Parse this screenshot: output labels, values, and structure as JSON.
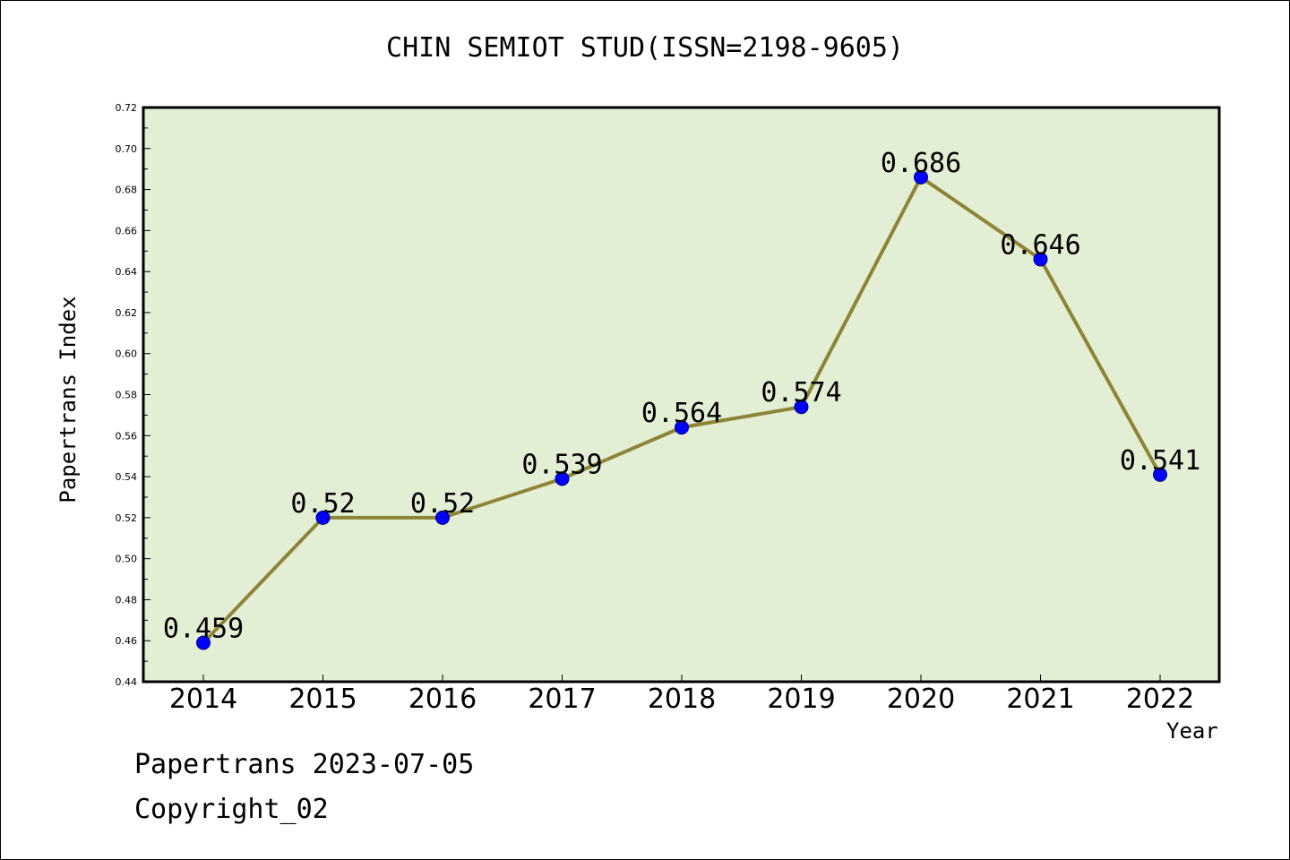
{
  "chart_data": {
    "type": "line",
    "title": "CHIN SEMIOT STUD(ISSN=2198-9605)",
    "xlabel": "Year",
    "ylabel": "Papertrans Index",
    "categories": [
      "2014",
      "2015",
      "2016",
      "2017",
      "2018",
      "2019",
      "2020",
      "2021",
      "2022"
    ],
    "series": [
      {
        "values": [
          0.459,
          0.52,
          0.52,
          0.539,
          0.564,
          0.574,
          0.686,
          0.646,
          0.541
        ],
        "labels": [
          "0.459",
          "0.52",
          "0.52",
          "0.539",
          "0.564",
          "0.574",
          "0.686",
          "0.646",
          "0.541"
        ]
      }
    ],
    "ylim": [
      0.44,
      0.72
    ],
    "yticks": [
      "0.44",
      "0.46",
      "0.48",
      "0.50",
      "0.52",
      "0.54",
      "0.56",
      "0.58",
      "0.60",
      "0.62",
      "0.64",
      "0.66",
      "0.68",
      "0.70",
      "0.72"
    ],
    "grid": false,
    "colors": {
      "plot_background": "#e2efd5",
      "line": "#8f8436",
      "marker": "#0000ff"
    }
  },
  "footer": {
    "line1": "Papertrans 2023-07-05",
    "line2": "Copyright_02"
  }
}
